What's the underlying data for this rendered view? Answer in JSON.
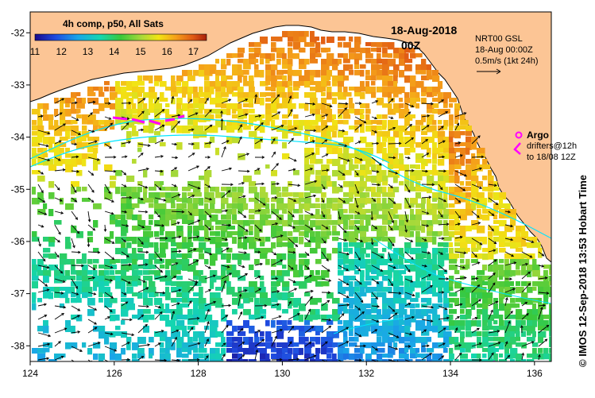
{
  "map": {
    "title": "4h comp, p50, All Sats",
    "date_line1": "18-Aug-2018",
    "date_line2": "00Z",
    "nrt_label": "NRT00 GSL",
    "time_label": "18-Aug 00:00Z",
    "velocity_scale": "0.5m/s (1kt 24h)",
    "argo_label": "Argo",
    "drifter_label1": "drifters@12h",
    "drifter_label2": "to 18/08 12Z",
    "credit": "© IMOS 12-Sep-2018 13:53 Hobart Time"
  },
  "colorbar": {
    "labels": [
      "11",
      "12",
      "13",
      "14",
      "15",
      "16",
      "17"
    ],
    "min": 11,
    "max": 17.5
  },
  "axes": {
    "lon_labels": [
      "124",
      "126",
      "128",
      "130",
      "132",
      "134",
      "136"
    ],
    "lon_values": [
      124,
      126,
      128,
      130,
      132,
      134,
      136
    ],
    "lat_labels": [
      "-32",
      "-33",
      "-34",
      "-35",
      "-36",
      "-37",
      "-38"
    ],
    "lat_values": [
      -32,
      -33,
      -34,
      -35,
      -36,
      -37,
      -38
    ],
    "lon_range": [
      124,
      136.4
    ],
    "lat_range": [
      -31.6,
      -38.3
    ]
  },
  "colors": {
    "land": "#fcc595",
    "ocean": "#ffffff",
    "bathymetry": "#00e5ff",
    "argo": "#ff00ff",
    "drifter": "#ff00ff"
  }
}
